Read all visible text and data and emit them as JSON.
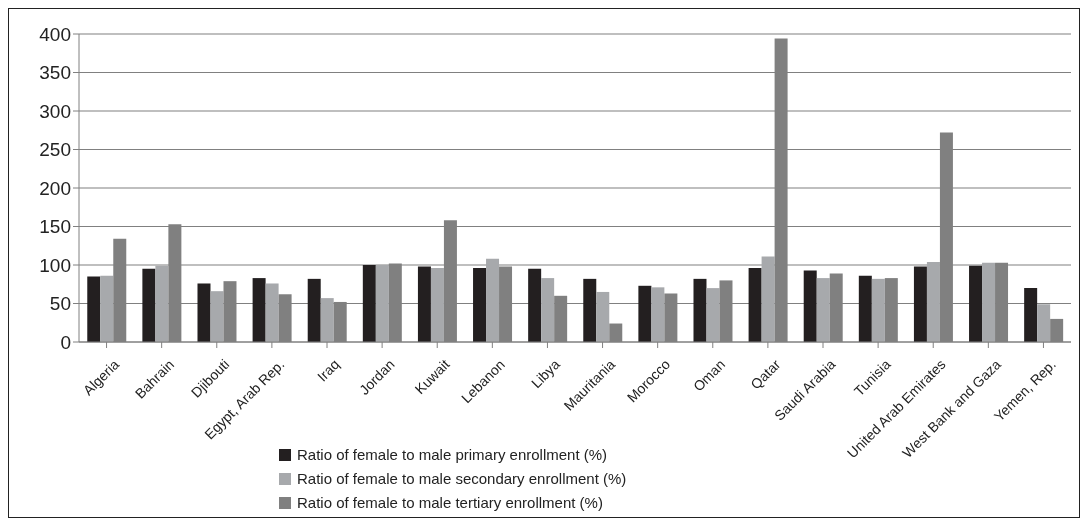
{
  "chart_data": {
    "type": "bar",
    "categories": [
      "Algeria",
      "Bahrain",
      "Djibouti",
      "Egypt, Arab Rep.",
      "Iraq",
      "Jordan",
      "Kuwait",
      "Lebanon",
      "Libya",
      "Mauritania",
      "Morocco",
      "Oman",
      "Qatar",
      "Saudi Arabia",
      "Tunisia",
      "United Arab Emirates",
      "West Bank and Gaza",
      "Yemen, Rep."
    ],
    "series": [
      {
        "name": "Ratio of female to male primary enrollment (%)",
        "color": "#231f20",
        "values": [
          85,
          95,
          76,
          83,
          82,
          100,
          98,
          96,
          95,
          82,
          73,
          82,
          96,
          93,
          86,
          98,
          99,
          70
        ]
      },
      {
        "name": "Ratio of female to male secondary enrollment (%)",
        "color": "#a7a9ac",
        "values": [
          86,
          99,
          66,
          76,
          57,
          100,
          96,
          108,
          83,
          65,
          71,
          70,
          111,
          83,
          82,
          104,
          103,
          49
        ]
      },
      {
        "name": "Ratio of female to male tertiary enrollment (%)",
        "color": "#808080",
        "values": [
          134,
          153,
          79,
          62,
          52,
          102,
          158,
          98,
          60,
          24,
          63,
          80,
          394,
          89,
          83,
          272,
          103,
          30
        ]
      }
    ],
    "ylim": [
      0,
      400
    ],
    "yticks": [
      0,
      50,
      100,
      150,
      200,
      250,
      300,
      350,
      400
    ],
    "grid": "y",
    "legend": "bottom"
  }
}
